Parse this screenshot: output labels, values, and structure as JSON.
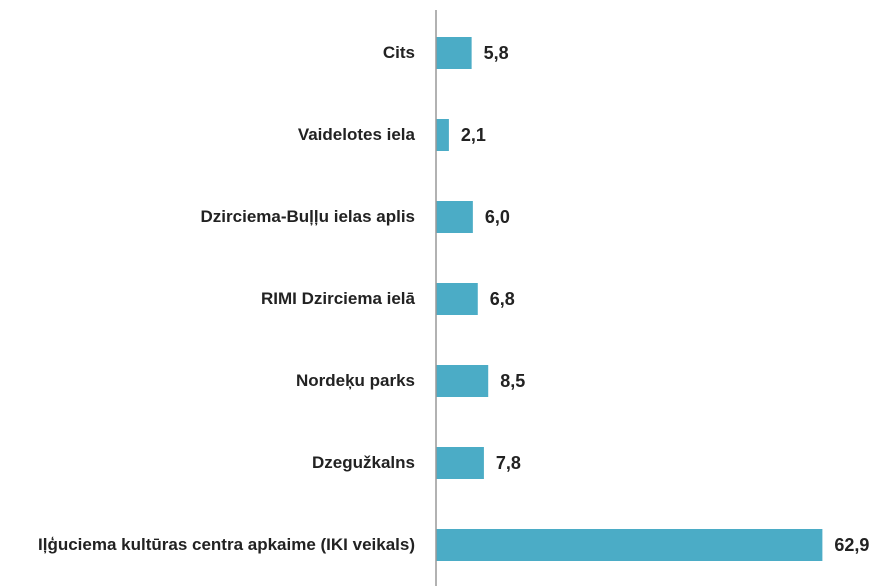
{
  "chart_data": {
    "type": "barh",
    "categories": [
      "Cits",
      "Vaidelotes iela",
      "Dzirciema-Buļļu ielas aplis",
      "RIMI Dzirciema ielā",
      "Nordeķu parks",
      "Dzegužkalns",
      "Iļģuciema kultūras centra apkaime (IKI veikals)"
    ],
    "values": [
      5.8,
      2.1,
      6.0,
      6.8,
      8.5,
      7.8,
      62.9
    ],
    "value_labels": [
      "5,8",
      "2,1",
      "6,0",
      "6,8",
      "8,5",
      "7,8",
      "62,9"
    ],
    "color": "#4bacc6",
    "xlim": [
      0,
      70
    ]
  }
}
